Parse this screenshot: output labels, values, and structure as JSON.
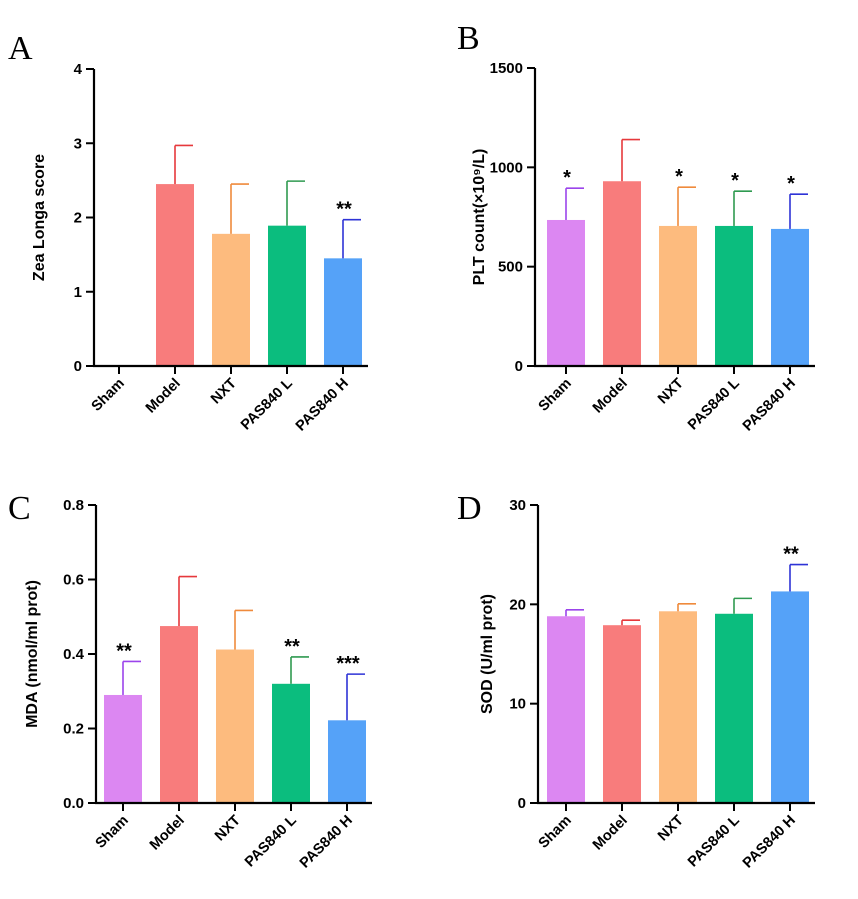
{
  "chart_data": [
    {
      "panel": "A",
      "type": "bar",
      "ylabel": "Zea Longa score",
      "categories": [
        "Sham",
        "Model",
        "NXT",
        "PAS840 L",
        "PAS840 H"
      ],
      "values": [
        0,
        2.45,
        1.78,
        1.89,
        1.45
      ],
      "errors": [
        0,
        0.52,
        0.67,
        0.6,
        0.52
      ],
      "significance": [
        "",
        "",
        "",
        "",
        "**"
      ],
      "ylim": [
        0,
        4
      ],
      "yticks": [
        0,
        1,
        2,
        3,
        4
      ]
    },
    {
      "panel": "B",
      "type": "bar",
      "ylabel": "PLT count(×10⁹/L)",
      "categories": [
        "Sham",
        "Model",
        "NXT",
        "PAS840 L",
        "PAS840 H"
      ],
      "values": [
        735,
        930,
        705,
        705,
        690
      ],
      "errors": [
        160,
        210,
        195,
        175,
        175
      ],
      "significance": [
        "*",
        "",
        "*",
        "*",
        "*"
      ],
      "ylim": [
        0,
        1500
      ],
      "yticks": [
        0,
        500,
        1000,
        1500
      ]
    },
    {
      "panel": "C",
      "type": "bar",
      "ylabel": "MDA (nmol/ml prot)",
      "categories": [
        "Sham",
        "Model",
        "NXT",
        "PAS840 L",
        "PAS840 H"
      ],
      "values": [
        0.29,
        0.475,
        0.412,
        0.32,
        0.222
      ],
      "errors": [
        0.09,
        0.133,
        0.105,
        0.072,
        0.124
      ],
      "significance": [
        "**",
        "",
        "",
        "**",
        "***"
      ],
      "ylim": [
        0,
        0.8
      ],
      "yticks": [
        "0.0",
        "0.2",
        "0.4",
        "0.6",
        "0.8"
      ]
    },
    {
      "panel": "D",
      "type": "bar",
      "ylabel": "SOD (U/ml prot)",
      "categories": [
        "Sham",
        "Model",
        "NXT",
        "PAS840 L",
        "PAS840 H"
      ],
      "values": [
        18.8,
        17.9,
        19.3,
        19.05,
        21.3
      ],
      "errors": [
        0.65,
        0.5,
        0.75,
        1.55,
        2.7
      ],
      "significance": [
        "",
        "",
        "",
        "",
        "**"
      ],
      "ylim": [
        0,
        30
      ],
      "yticks": [
        0,
        10,
        20,
        30
      ]
    }
  ],
  "colors": {
    "fill": [
      "#dc87f2",
      "#f87c7c",
      "#fdbb7e",
      "#0bbd7e",
      "#55a2f8"
    ],
    "error": [
      "#9b44eb",
      "#e6393c",
      "#ef8a3c",
      "#2f9a50",
      "#2e33d6"
    ],
    "axis": "#000000"
  }
}
